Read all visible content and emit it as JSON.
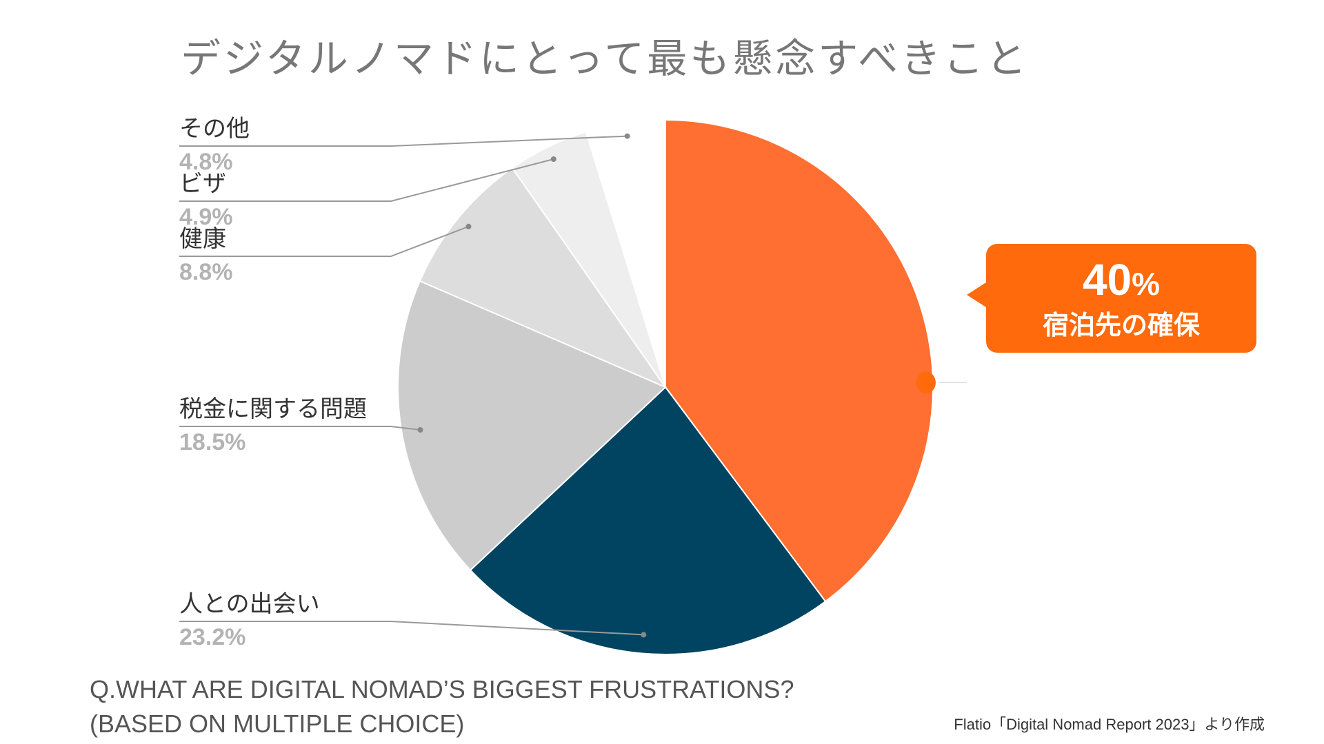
{
  "chart_data": {
    "type": "pie",
    "title": "デジタルノマドにとって最も懸念すべきこと",
    "slices": [
      {
        "label": "宿泊先の確保",
        "value": 39.8,
        "display": "40%",
        "color": "#ff6f31"
      },
      {
        "label": "人との出会い",
        "value": 23.2,
        "display": "23.2%",
        "color": "#004461"
      },
      {
        "label": "税金に関する問題",
        "value": 18.5,
        "display": "18.5%",
        "color": "#cccccc"
      },
      {
        "label": "健康",
        "value": 8.8,
        "display": "8.8%",
        "color": "#dddddd"
      },
      {
        "label": "ビザ",
        "value": 4.9,
        "display": "4.9%",
        "color": "#eeeeee"
      },
      {
        "label": "その他",
        "value": 4.8,
        "display": "4.8%",
        "color": "#ffffff"
      }
    ],
    "start_angle_deg": 0,
    "direction": "clockwise",
    "legend": "none"
  },
  "callout": {
    "value_number": "40",
    "value_unit": "%",
    "label": "宿泊先の確保",
    "color": "#ff6a0c"
  },
  "question": {
    "line1": "Q.WHAT ARE DIGITAL NOMAD’S BIGGEST FRUSTRATIONS?",
    "line2": "(BASED ON MULTIPLE CHOICE)"
  },
  "source": "Flatio「Digital Nomad Report 2023」より作成"
}
